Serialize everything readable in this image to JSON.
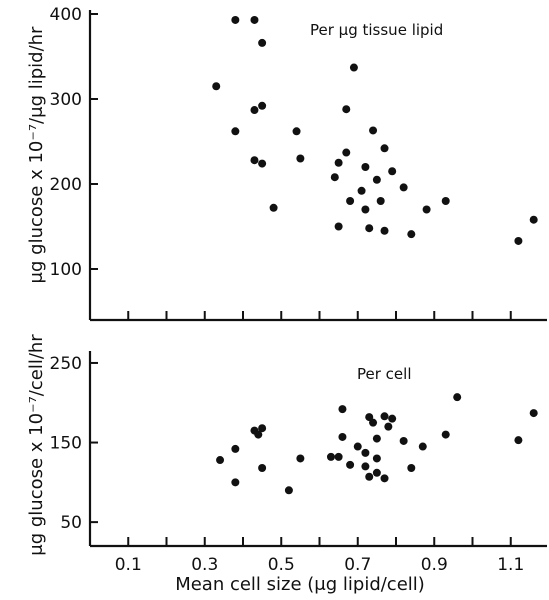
{
  "chart_data": [
    {
      "type": "scatter",
      "annotation": "Per μg tissue lipid",
      "ylabel": "μg glucose x 10⁻⁷/μg lipid/hr",
      "ylim": [
        40,
        400
      ],
      "yticks": [
        100,
        200,
        300,
        400
      ],
      "xlim": [
        0,
        1.2
      ],
      "x_tick_marks": [
        0.1,
        0.2,
        0.3,
        0.4,
        0.5,
        0.6,
        0.7,
        0.8,
        0.9,
        1.0,
        1.1
      ],
      "grid": false,
      "points": [
        {
          "x": 0.33,
          "y": 315
        },
        {
          "x": 0.38,
          "y": 393
        },
        {
          "x": 0.38,
          "y": 262
        },
        {
          "x": 0.43,
          "y": 393
        },
        {
          "x": 0.43,
          "y": 287
        },
        {
          "x": 0.43,
          "y": 228
        },
        {
          "x": 0.45,
          "y": 366
        },
        {
          "x": 0.45,
          "y": 292
        },
        {
          "x": 0.45,
          "y": 224
        },
        {
          "x": 0.48,
          "y": 172
        },
        {
          "x": 0.54,
          "y": 262
        },
        {
          "x": 0.55,
          "y": 230
        },
        {
          "x": 0.64,
          "y": 208
        },
        {
          "x": 0.65,
          "y": 225
        },
        {
          "x": 0.65,
          "y": 150
        },
        {
          "x": 0.67,
          "y": 288
        },
        {
          "x": 0.67,
          "y": 237
        },
        {
          "x": 0.68,
          "y": 180
        },
        {
          "x": 0.69,
          "y": 337
        },
        {
          "x": 0.71,
          "y": 192
        },
        {
          "x": 0.72,
          "y": 220
        },
        {
          "x": 0.72,
          "y": 170
        },
        {
          "x": 0.73,
          "y": 148
        },
        {
          "x": 0.74,
          "y": 263
        },
        {
          "x": 0.75,
          "y": 205
        },
        {
          "x": 0.76,
          "y": 180
        },
        {
          "x": 0.77,
          "y": 242
        },
        {
          "x": 0.77,
          "y": 145
        },
        {
          "x": 0.79,
          "y": 215
        },
        {
          "x": 0.82,
          "y": 196
        },
        {
          "x": 0.84,
          "y": 141
        },
        {
          "x": 0.88,
          "y": 170
        },
        {
          "x": 0.93,
          "y": 180
        },
        {
          "x": 1.12,
          "y": 133
        },
        {
          "x": 1.16,
          "y": 158
        }
      ]
    },
    {
      "type": "scatter",
      "annotation": "Per cell",
      "ylabel": "μg glucose x 10⁻⁷/cell/hr",
      "xlabel": "Mean cell size (μg lipid/cell)",
      "ylim": [
        20,
        260
      ],
      "yticks": [
        50,
        150,
        250
      ],
      "xlim": [
        0,
        1.2
      ],
      "xticks": [
        0.1,
        0.3,
        0.5,
        0.7,
        0.9,
        1.1
      ],
      "x_tick_marks": [
        0.1,
        0.2,
        0.3,
        0.4,
        0.5,
        0.6,
        0.7,
        0.8,
        0.9,
        1.0,
        1.1
      ],
      "grid": false,
      "points": [
        {
          "x": 0.34,
          "y": 128
        },
        {
          "x": 0.38,
          "y": 142
        },
        {
          "x": 0.38,
          "y": 100
        },
        {
          "x": 0.43,
          "y": 165
        },
        {
          "x": 0.44,
          "y": 160
        },
        {
          "x": 0.45,
          "y": 168
        },
        {
          "x": 0.45,
          "y": 118
        },
        {
          "x": 0.52,
          "y": 90
        },
        {
          "x": 0.55,
          "y": 130
        },
        {
          "x": 0.63,
          "y": 132
        },
        {
          "x": 0.65,
          "y": 132
        },
        {
          "x": 0.66,
          "y": 192
        },
        {
          "x": 0.66,
          "y": 157
        },
        {
          "x": 0.68,
          "y": 122
        },
        {
          "x": 0.7,
          "y": 145
        },
        {
          "x": 0.72,
          "y": 137
        },
        {
          "x": 0.72,
          "y": 120
        },
        {
          "x": 0.73,
          "y": 182
        },
        {
          "x": 0.73,
          "y": 107
        },
        {
          "x": 0.74,
          "y": 175
        },
        {
          "x": 0.75,
          "y": 155
        },
        {
          "x": 0.75,
          "y": 130
        },
        {
          "x": 0.75,
          "y": 112
        },
        {
          "x": 0.77,
          "y": 183
        },
        {
          "x": 0.77,
          "y": 105
        },
        {
          "x": 0.78,
          "y": 170
        },
        {
          "x": 0.79,
          "y": 180
        },
        {
          "x": 0.82,
          "y": 152
        },
        {
          "x": 0.84,
          "y": 118
        },
        {
          "x": 0.87,
          "y": 145
        },
        {
          "x": 0.93,
          "y": 160
        },
        {
          "x": 0.96,
          "y": 207
        },
        {
          "x": 1.12,
          "y": 153
        },
        {
          "x": 1.16,
          "y": 187
        }
      ]
    }
  ]
}
